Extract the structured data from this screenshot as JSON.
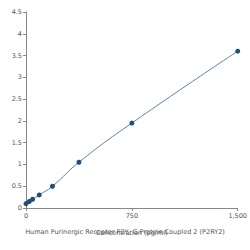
{
  "chart_data": {
    "type": "line",
    "title": "Human Purinergic Receptor P2Y, G Protein Coupled 2 (P2RY2)",
    "xlabel": "Concentration (pg/ml)",
    "x": [
      0,
      23.4,
      46.9,
      93.75,
      187.5,
      375,
      750,
      1500
    ],
    "values": [
      0.1,
      0.15,
      0.2,
      0.3,
      0.5,
      1.05,
      1.95,
      3.6
    ],
    "color": "#1f4e79",
    "marker": "circle",
    "xlim": [
      0,
      1500
    ],
    "xticks": [
      0,
      750,
      1500
    ],
    "ylim": [
      0,
      4.5
    ],
    "yticks": [
      0,
      0.5,
      1,
      1.5,
      2,
      2.5,
      3,
      3.5,
      4,
      4.5
    ],
    "grid": false
  }
}
